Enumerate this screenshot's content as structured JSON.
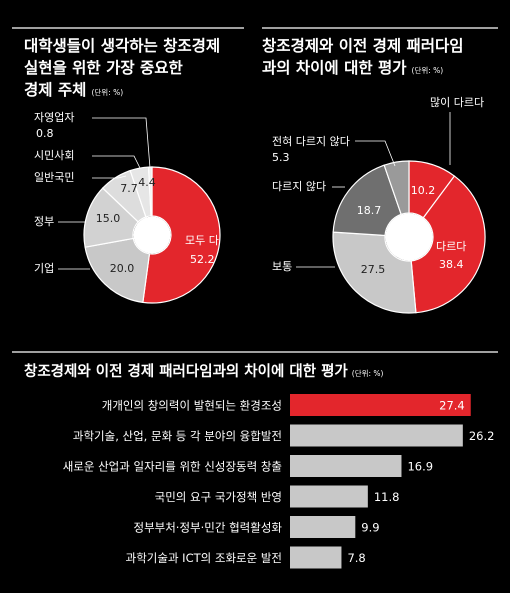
{
  "colors": {
    "background": "#000000",
    "highlight_red": "#e3262c",
    "dark_gray": "#6f6f6f",
    "light_gray": "#c8c8c8",
    "pale_gray": "#dddddd",
    "text": "#ffffff"
  },
  "chart_data": [
    {
      "type": "pie",
      "variant": "donut",
      "title": "대학생들이 생각하는 창조경제 실현을 위한 가장 중요한 경제 주체",
      "title_lines": [
        "대학생들이 생각하는 창조경제",
        "실현을 위한 가장 중요한",
        "경제 주체"
      ],
      "unit_note": "(단위: %)",
      "slices": [
        {
          "label": "모두 다",
          "value": 52.2,
          "value_text": "52.2",
          "color": "#e3262c"
        },
        {
          "label": "기업",
          "value": 20.0,
          "value_text": "20.0",
          "color": "#c8c8c8"
        },
        {
          "label": "정부",
          "value": 15.0,
          "value_text": "15.0",
          "color": "#d2d2d2"
        },
        {
          "label": "일반국민",
          "value": 7.7,
          "value_text": "7.7",
          "color": "#dddddd"
        },
        {
          "label": "시민사회",
          "value": 4.4,
          "value_text": "4.4",
          "color": "#e6e6e6"
        },
        {
          "label": "자영업자",
          "value": 0.8,
          "value_text": "0.8",
          "color": "#efefef"
        }
      ]
    },
    {
      "type": "pie",
      "variant": "donut",
      "title": "창조경제와 이전 경제 패러다임 과의 차이에 대한 평가",
      "title_lines": [
        "창조경제와 이전 경제 패러다임",
        "과의 차이에 대한 평가"
      ],
      "unit_note": "(단위: %)",
      "slices": [
        {
          "label": "많이 다르다",
          "value": 10.2,
          "value_text": "10.2",
          "color": "#e3262c"
        },
        {
          "label": "다르다",
          "value": 38.4,
          "value_text": "38.4",
          "color": "#e3262c"
        },
        {
          "label": "보통",
          "value": 27.5,
          "value_text": "27.5",
          "color": "#c8c8c8"
        },
        {
          "label": "다르지 않다",
          "value": 18.7,
          "value_text": "18.7",
          "color": "#6f6f6f"
        },
        {
          "label": "전혀 다르지 않다",
          "value": 5.3,
          "value_text": "5.3",
          "color": "#9a9a9a"
        }
      ]
    },
    {
      "type": "bar",
      "orientation": "horizontal",
      "title": "창조경제와 이전 경제 패러다임과의 차이에 대한 평가",
      "unit_note": "(단위: %)",
      "categories": [
        "개개인의 창의력이 발현되는 환경조성",
        "과학기술, 산업, 문화 등 각 분야의 융합발전",
        "새로운 산업과 일자리를 위한 신성장동력 창출",
        "국민의 요구 국가정책 반영",
        "정부부처·정부·민간 협력활성화",
        "과학기술과 ICT의 조화로운 발전"
      ],
      "values": [
        27.4,
        26.2,
        16.9,
        11.8,
        9.9,
        7.8
      ],
      "value_text": [
        "27.4",
        "26.2",
        "16.9",
        "11.8",
        "9.9",
        "7.8"
      ],
      "highlight_index": 0,
      "xlim": [
        0,
        28.5
      ]
    }
  ]
}
